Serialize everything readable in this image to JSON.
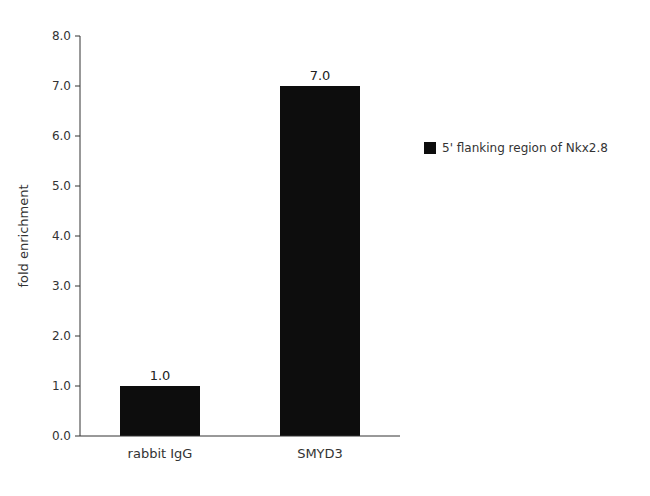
{
  "chart_data": {
    "type": "bar",
    "categories": [
      "rabbit IgG",
      "SMYD3"
    ],
    "series": [
      {
        "name": "5' flanking region of Nkx2.8",
        "color": "#0d0d0d",
        "values": [
          1.0,
          7.0
        ],
        "value_labels": [
          "1.0",
          "7.0"
        ]
      }
    ],
    "ylabel": "fold enrichment",
    "ylim": [
      0,
      8.0
    ],
    "yticks": [
      {
        "value": 0,
        "label": "0.0"
      },
      {
        "value": 1,
        "label": "1.0"
      },
      {
        "value": 2,
        "label": "2.0"
      },
      {
        "value": 3,
        "label": "3.0"
      },
      {
        "value": 4,
        "label": "4.0"
      },
      {
        "value": 5,
        "label": "5.0"
      },
      {
        "value": 6,
        "label": "6.0"
      },
      {
        "value": 7,
        "label": "7.0"
      },
      {
        "value": 8,
        "label": "8.0"
      }
    ],
    "data_labels": true,
    "legend": "right",
    "grid": false
  }
}
